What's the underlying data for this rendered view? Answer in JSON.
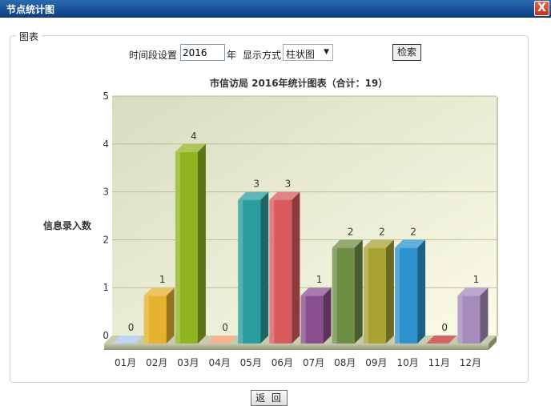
{
  "window": {
    "title": "节点统计图",
    "close_glyph": "X"
  },
  "groupbox": {
    "legend": "图表"
  },
  "form": {
    "period_label": "时间段设置",
    "year_value": "2016",
    "year_unit": "年",
    "mode_label": "显示方式",
    "mode_value": "柱状图",
    "search_label": "检索"
  },
  "back_label": "返 回",
  "chart_data": {
    "type": "bar",
    "title": "市信访局 2016年统计图表（合计：19）",
    "ylabel": "信息录入数",
    "xlabel": "",
    "categories": [
      "01月",
      "02月",
      "03月",
      "04月",
      "05月",
      "06月",
      "07月",
      "08月",
      "09月",
      "10月",
      "11月",
      "12月"
    ],
    "values": [
      0,
      1,
      4,
      0,
      3,
      3,
      1,
      2,
      2,
      2,
      0,
      1
    ],
    "ylim": [
      0,
      5
    ],
    "yticks": [
      0,
      1,
      2,
      3,
      4,
      5
    ],
    "grid": true,
    "legend": "none",
    "colors": [
      "#a9c7ec",
      "#e6b12e",
      "#8fb321",
      "#f09a6e",
      "#2a9e9e",
      "#d85a5c",
      "#8a4f8f",
      "#6f8e45",
      "#a9a334",
      "#2d93cf",
      "#c33033",
      "#a68bbd"
    ]
  }
}
